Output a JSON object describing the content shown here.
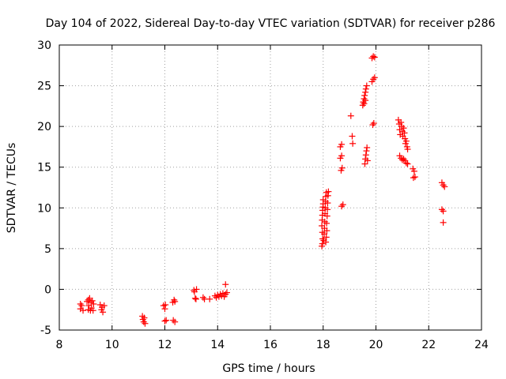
{
  "chart_data": {
    "type": "scatter",
    "title": "Day 104 of 2022, Sidereal Day-to-day VTEC variation (SDTVAR) for receiver p286",
    "xlabel": "GPS time / hours",
    "ylabel": "SDTVAR / TECUs",
    "xlim": [
      8,
      24
    ],
    "ylim": [
      -5,
      30
    ],
    "xticks": [
      8,
      10,
      12,
      14,
      16,
      18,
      20,
      22,
      24
    ],
    "yticks": [
      -5,
      0,
      5,
      10,
      15,
      20,
      25,
      30
    ],
    "grid": true,
    "marker": "+",
    "color": "#ff0000",
    "series": [
      {
        "name": "SDTVAR",
        "points": [
          [
            8.8,
            -1.8
          ],
          [
            8.8,
            -2.4
          ],
          [
            8.85,
            -2.0
          ],
          [
            8.9,
            -2.6
          ],
          [
            9.05,
            -1.5
          ],
          [
            9.1,
            -2.5
          ],
          [
            9.1,
            -1.3
          ],
          [
            9.12,
            -2.0
          ],
          [
            9.15,
            -1.1
          ],
          [
            9.18,
            -2.6
          ],
          [
            9.2,
            -1.6
          ],
          [
            9.22,
            -2.3
          ],
          [
            9.25,
            -1.4
          ],
          [
            9.28,
            -2.6
          ],
          [
            9.3,
            -1.8
          ],
          [
            9.55,
            -1.9
          ],
          [
            9.6,
            -2.5
          ],
          [
            9.62,
            -2.2
          ],
          [
            9.65,
            -2.8
          ],
          [
            9.7,
            -2.0
          ],
          [
            11.15,
            -3.3
          ],
          [
            11.17,
            -3.7
          ],
          [
            11.2,
            -4.0
          ],
          [
            11.22,
            -3.5
          ],
          [
            11.25,
            -4.2
          ],
          [
            11.95,
            -2.0
          ],
          [
            12.0,
            -2.4
          ],
          [
            12.02,
            -1.9
          ],
          [
            12.0,
            -3.9
          ],
          [
            12.05,
            -3.8
          ],
          [
            12.3,
            -1.6
          ],
          [
            12.35,
            -1.3
          ],
          [
            12.38,
            -1.5
          ],
          [
            12.32,
            -3.8
          ],
          [
            12.38,
            -4.0
          ],
          [
            13.1,
            -0.1
          ],
          [
            13.12,
            -0.3
          ],
          [
            13.15,
            -1.1
          ],
          [
            13.18,
            -1.2
          ],
          [
            13.2,
            0.0
          ],
          [
            13.45,
            -1.0
          ],
          [
            13.5,
            -1.2
          ],
          [
            13.7,
            -1.2
          ],
          [
            13.9,
            -0.8
          ],
          [
            13.95,
            -1.0
          ],
          [
            14.0,
            -0.7
          ],
          [
            14.05,
            -0.9
          ],
          [
            14.1,
            -0.6
          ],
          [
            14.15,
            -0.8
          ],
          [
            14.2,
            -0.5
          ],
          [
            14.25,
            -0.9
          ],
          [
            14.3,
            -0.6
          ],
          [
            14.35,
            -0.4
          ],
          [
            14.3,
            0.6
          ],
          [
            17.95,
            5.3
          ],
          [
            17.97,
            5.6
          ],
          [
            17.98,
            6.2
          ],
          [
            17.97,
            7.0
          ],
          [
            17.95,
            7.8
          ],
          [
            17.96,
            8.5
          ],
          [
            17.97,
            9.1
          ],
          [
            17.98,
            9.7
          ],
          [
            17.99,
            10.1
          ],
          [
            18.0,
            10.5
          ],
          [
            18.0,
            11.0
          ],
          [
            18.02,
            6.0
          ],
          [
            18.04,
            6.8
          ],
          [
            18.05,
            7.5
          ],
          [
            18.06,
            8.3
          ],
          [
            18.07,
            9.3
          ],
          [
            18.08,
            10.0
          ],
          [
            18.09,
            10.8
          ],
          [
            18.1,
            11.4
          ],
          [
            18.12,
            11.9
          ],
          [
            18.1,
            5.8
          ],
          [
            18.12,
            6.4
          ],
          [
            18.14,
            7.2
          ],
          [
            18.13,
            8.1
          ],
          [
            18.15,
            9.0
          ],
          [
            18.16,
            9.8
          ],
          [
            18.17,
            10.6
          ],
          [
            18.18,
            11.5
          ],
          [
            18.2,
            12.0
          ],
          [
            18.65,
            17.5
          ],
          [
            18.7,
            17.8
          ],
          [
            18.65,
            16.1
          ],
          [
            18.7,
            16.4
          ],
          [
            18.68,
            14.6
          ],
          [
            18.72,
            14.9
          ],
          [
            18.7,
            10.2
          ],
          [
            18.75,
            10.4
          ],
          [
            19.05,
            21.3
          ],
          [
            19.1,
            18.8
          ],
          [
            19.12,
            17.9
          ],
          [
            19.5,
            22.6
          ],
          [
            19.52,
            23.0
          ],
          [
            19.55,
            23.4
          ],
          [
            19.57,
            23.8
          ],
          [
            19.6,
            24.2
          ],
          [
            19.62,
            24.6
          ],
          [
            19.65,
            25.0
          ],
          [
            19.55,
            22.8
          ],
          [
            19.6,
            23.2
          ],
          [
            19.58,
            15.4
          ],
          [
            19.6,
            16.0
          ],
          [
            19.62,
            16.5
          ],
          [
            19.64,
            17.0
          ],
          [
            19.66,
            17.4
          ],
          [
            19.68,
            15.8
          ],
          [
            19.85,
            28.4
          ],
          [
            19.9,
            28.6
          ],
          [
            19.95,
            28.5
          ],
          [
            19.85,
            25.5
          ],
          [
            19.9,
            25.8
          ],
          [
            19.95,
            26.0
          ],
          [
            19.88,
            20.2
          ],
          [
            19.92,
            20.4
          ],
          [
            20.85,
            20.8
          ],
          [
            20.88,
            20.3
          ],
          [
            20.9,
            19.6
          ],
          [
            20.92,
            19.0
          ],
          [
            20.95,
            20.5
          ],
          [
            20.98,
            20.0
          ],
          [
            21.0,
            19.4
          ],
          [
            21.02,
            18.8
          ],
          [
            21.05,
            19.8
          ],
          [
            21.08,
            19.2
          ],
          [
            21.1,
            18.5
          ],
          [
            21.12,
            17.9
          ],
          [
            21.15,
            18.2
          ],
          [
            21.18,
            17.5
          ],
          [
            21.2,
            17.2
          ],
          [
            20.9,
            16.4
          ],
          [
            20.95,
            16.1
          ],
          [
            21.0,
            15.9
          ],
          [
            21.05,
            16.0
          ],
          [
            21.1,
            15.8
          ],
          [
            21.15,
            15.5
          ],
          [
            21.2,
            15.4
          ],
          [
            21.4,
            14.8
          ],
          [
            21.45,
            14.5
          ],
          [
            21.42,
            13.7
          ],
          [
            21.48,
            13.8
          ],
          [
            22.5,
            13.1
          ],
          [
            22.55,
            12.8
          ],
          [
            22.6,
            12.6
          ],
          [
            22.5,
            9.8
          ],
          [
            22.55,
            9.6
          ],
          [
            22.55,
            8.2
          ]
        ]
      }
    ]
  }
}
